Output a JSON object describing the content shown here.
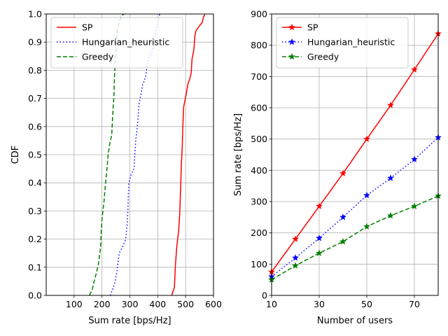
{
  "chart_data": [
    {
      "type": "line",
      "xlabel": "Sum rate [bps/Hz]",
      "ylabel": "CDF",
      "xlim": [
        0,
        600
      ],
      "ylim": [
        0,
        1
      ],
      "xticks": [
        100,
        200,
        300,
        400,
        500,
        600
      ],
      "yticks": [
        0.0,
        0.1,
        0.2,
        0.3,
        0.4,
        0.5,
        0.6,
        0.7,
        0.8,
        0.9,
        1.0
      ],
      "grid": true,
      "legend_position": "top-left",
      "series": [
        {
          "name": "SP",
          "color": "#ff0000",
          "linestyle": "solid",
          "x": [
            450,
            460,
            463,
            468,
            475,
            479,
            481,
            483,
            485,
            488,
            490,
            493,
            497,
            503,
            508,
            515,
            520,
            523,
            529,
            531,
            533,
            537,
            544,
            551,
            560,
            564,
            570
          ],
          "y": [
            0.0,
            0.03,
            0.1,
            0.17,
            0.23,
            0.29,
            0.35,
            0.41,
            0.47,
            0.53,
            0.6,
            0.67,
            0.69,
            0.72,
            0.75,
            0.77,
            0.79,
            0.84,
            0.87,
            0.89,
            0.92,
            0.94,
            0.95,
            0.96,
            0.97,
            0.99,
            1.0
          ]
        },
        {
          "name": "Hungarian_heuristic",
          "color": "#0000ff",
          "linestyle": "dotted",
          "x": [
            230,
            245,
            253,
            258,
            262,
            267,
            273,
            285,
            290,
            293,
            296,
            305,
            315,
            321,
            329,
            333,
            341,
            346,
            351,
            357,
            361,
            366,
            377,
            386,
            391,
            398,
            402,
            407
          ],
          "y": [
            0.0,
            0.04,
            0.08,
            0.12,
            0.15,
            0.16,
            0.17,
            0.2,
            0.25,
            0.3,
            0.4,
            0.43,
            0.45,
            0.55,
            0.62,
            0.68,
            0.72,
            0.75,
            0.76,
            0.78,
            0.81,
            0.84,
            0.86,
            0.89,
            0.93,
            0.95,
            0.98,
            1.0
          ]
        },
        {
          "name": "Greedy",
          "color": "#008000",
          "linestyle": "dashed",
          "x": [
            155,
            165,
            172,
            180,
            187,
            195,
            197,
            200,
            207,
            212,
            218,
            222,
            228,
            235,
            239,
            243,
            245,
            248,
            252,
            256,
            262,
            268,
            278
          ],
          "y": [
            0.0,
            0.02,
            0.05,
            0.08,
            0.11,
            0.17,
            0.22,
            0.27,
            0.33,
            0.39,
            0.45,
            0.5,
            0.54,
            0.57,
            0.65,
            0.71,
            0.78,
            0.84,
            0.91,
            0.95,
            0.97,
            0.99,
            1.0
          ]
        }
      ]
    },
    {
      "type": "line",
      "xlabel": "Number of users",
      "ylabel": "Sum rate [bps/Hz]",
      "xlim": [
        10,
        80
      ],
      "ylim": [
        0,
        900
      ],
      "xticks": [
        10,
        30,
        50,
        70
      ],
      "yticks": [
        0,
        100,
        200,
        300,
        400,
        500,
        600,
        700,
        800,
        900
      ],
      "grid": true,
      "legend_position": "top-left",
      "x": [
        10,
        20,
        30,
        40,
        50,
        60,
        70,
        80
      ],
      "series": [
        {
          "name": "SP",
          "color": "#ff0000",
          "linestyle": "solid",
          "marker": "star",
          "values": [
            75,
            180,
            285,
            390,
            500,
            608,
            722,
            837
          ]
        },
        {
          "name": "Hungarian_heuristic",
          "color": "#0000ff",
          "linestyle": "dotted",
          "marker": "star",
          "values": [
            60,
            120,
            183,
            250,
            320,
            375,
            435,
            505
          ]
        },
        {
          "name": "Greedy",
          "color": "#008000",
          "linestyle": "dashed",
          "marker": "star",
          "values": [
            50,
            95,
            135,
            172,
            220,
            255,
            285,
            318
          ]
        }
      ]
    }
  ]
}
